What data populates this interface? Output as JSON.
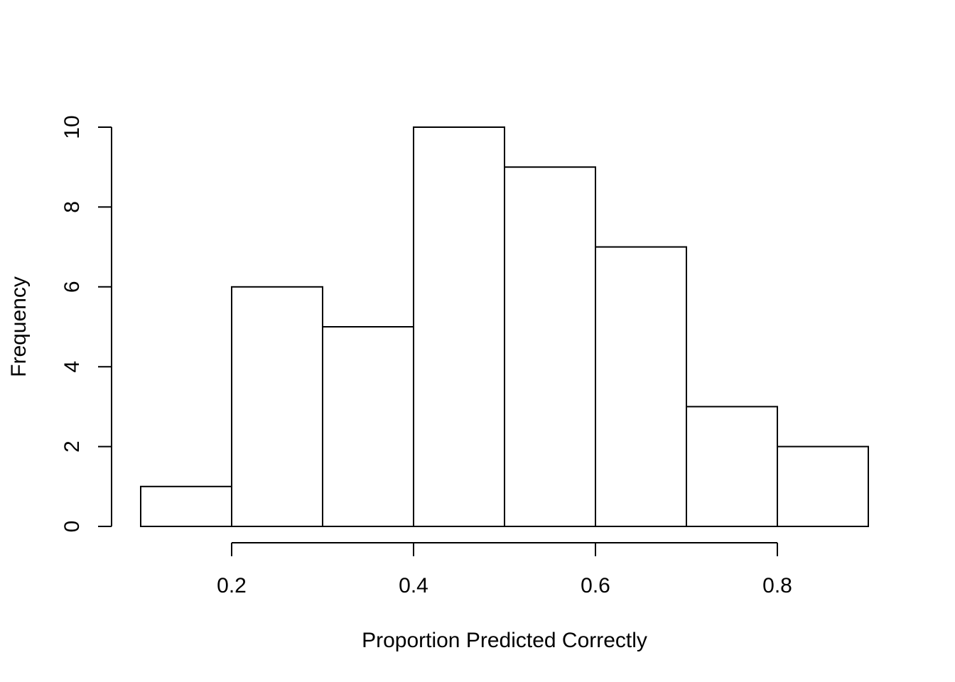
{
  "chart_data": {
    "type": "bar",
    "title": "",
    "xlabel": "Proportion Predicted Correctly",
    "ylabel": "Frequency",
    "bin_edges": [
      0.1,
      0.2,
      0.3,
      0.4,
      0.5,
      0.6,
      0.7,
      0.8,
      0.9
    ],
    "values": [
      1,
      6,
      5,
      10,
      9,
      7,
      3,
      2
    ],
    "xlim": [
      0.1,
      0.9
    ],
    "ylim": [
      0,
      10
    ],
    "x_ticks": [
      0.2,
      0.4,
      0.6,
      0.8
    ],
    "x_tick_labels": [
      "0.2",
      "0.4",
      "0.6",
      "0.8"
    ],
    "y_ticks": [
      0,
      2,
      4,
      6,
      8,
      10
    ],
    "y_tick_labels": [
      "0",
      "2",
      "4",
      "6",
      "8",
      "10"
    ],
    "grid": false,
    "legend": "none",
    "colors": {
      "bar_fill": "#ffffff",
      "bar_stroke": "#000000",
      "axis": "#000000",
      "background": "#ffffff"
    }
  }
}
